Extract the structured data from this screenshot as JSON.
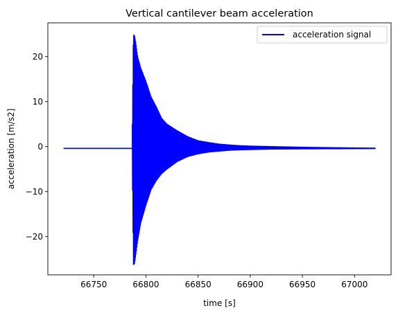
{
  "chart_data": {
    "type": "line",
    "title": "Vertical cantilever beam acceleration",
    "xlabel": "time [s]",
    "ylabel": "acceleration [m/s2]",
    "xlim": [
      66706,
      67035
    ],
    "ylim": [
      -28.5,
      27.5
    ],
    "xticks": [
      66750,
      66800,
      66850,
      66900,
      66950,
      67000
    ],
    "xtick_labels": [
      "66750",
      "66800",
      "66850",
      "66900",
      "66950",
      "67000"
    ],
    "yticks": [
      20,
      10,
      0,
      -10,
      -20
    ],
    "ytick_labels": [
      "20",
      "10",
      "0",
      "−10",
      "−20"
    ],
    "grid": false,
    "legend_position": "top-right",
    "series": [
      {
        "name": "acceleration signal",
        "color": "#0000ff",
        "baseline": -0.4,
        "signal_start_x": 66721,
        "signal_end_x": 67020,
        "impact_x": 66788,
        "envelope": {
          "x": [
            66787,
            66788,
            66789,
            66790,
            66792,
            66795,
            66800,
            66805,
            66810,
            66815,
            66820,
            66830,
            66840,
            66850,
            66860,
            66870,
            66880,
            66890,
            66900,
            66920,
            66950,
            66980,
            67000,
            67020
          ],
          "upper": [
            5.0,
            24.8,
            24.7,
            23.5,
            20.0,
            17.5,
            14.5,
            11.0,
            8.8,
            6.3,
            5.0,
            3.5,
            2.2,
            1.3,
            0.9,
            0.55,
            0.35,
            0.2,
            0.1,
            0.0,
            -0.15,
            -0.25,
            -0.3,
            -0.35
          ],
          "lower": [
            -5.0,
            -26.2,
            -26.0,
            -24.5,
            -21.0,
            -17.0,
            -13.0,
            -9.5,
            -7.5,
            -6.0,
            -5.0,
            -3.3,
            -2.2,
            -1.6,
            -1.2,
            -1.0,
            -0.8,
            -0.7,
            -0.65,
            -0.55,
            -0.5,
            -0.47,
            -0.45,
            -0.43
          ]
        }
      }
    ]
  }
}
